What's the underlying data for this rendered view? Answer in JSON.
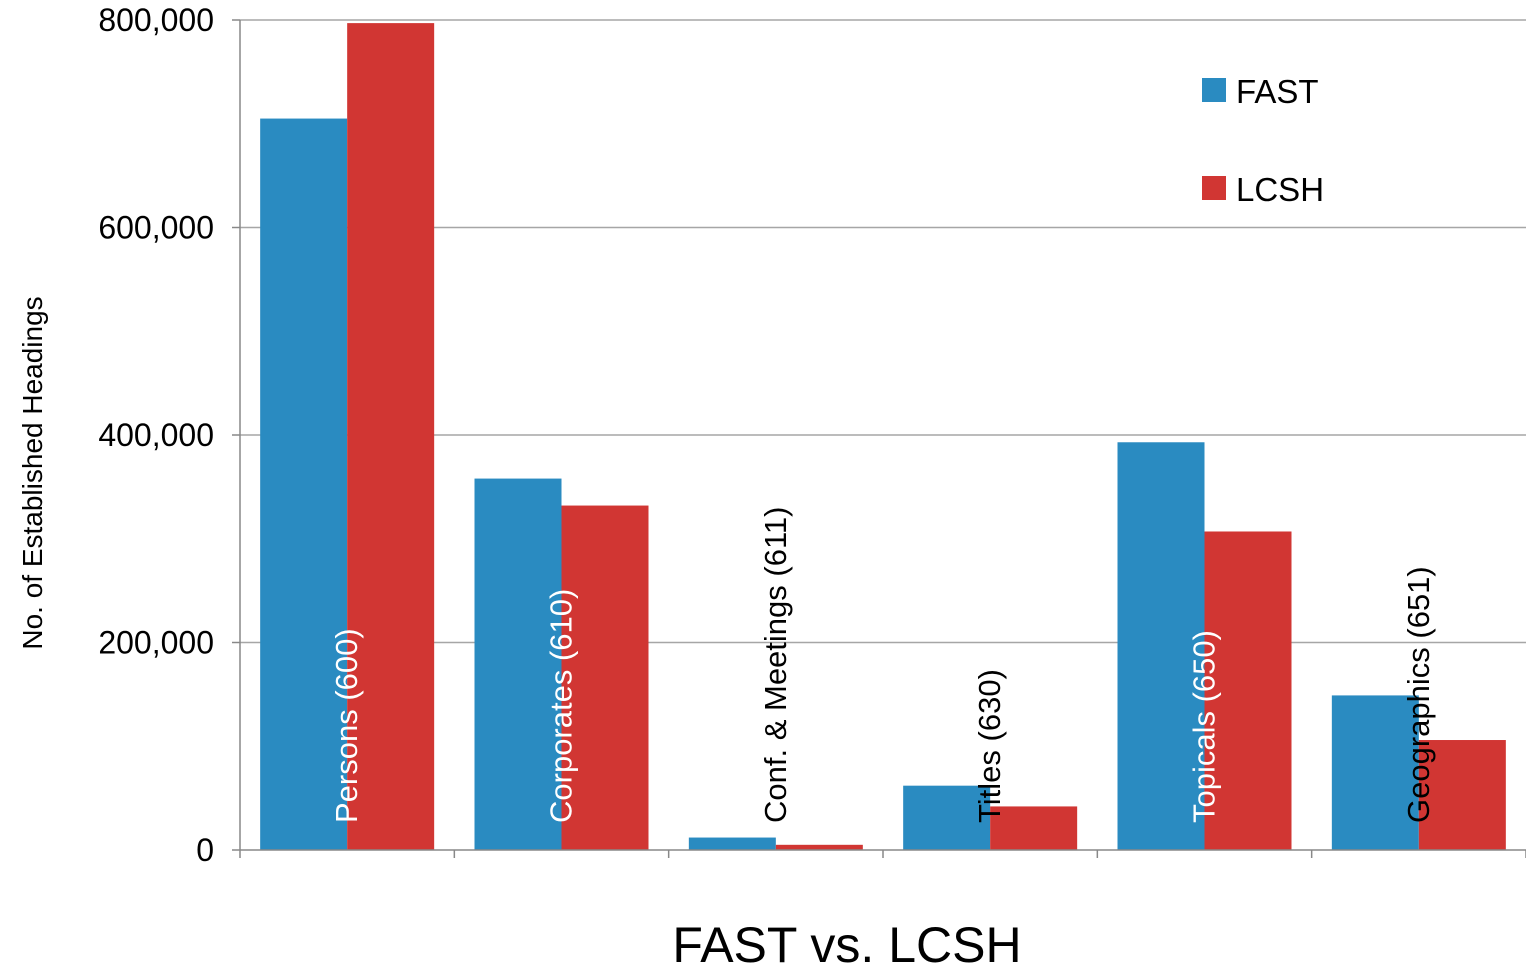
{
  "colors": {
    "fast": "#2a8bc1",
    "lcsh": "#d13633",
    "grid": "#a6a6a6",
    "axis": "#888888"
  },
  "chart_data": {
    "type": "bar",
    "title": "",
    "xlabel": "FAST vs. LCSH",
    "ylabel": "No. of Established Headings",
    "ylim": [
      0,
      800000
    ],
    "yticks": [
      "0",
      "200,000",
      "400,000",
      "600,000",
      "800,000"
    ],
    "ytick_values": [
      0,
      200000,
      400000,
      600000,
      800000
    ],
    "grid": true,
    "legend_position": "top-right",
    "categories": [
      "Persons (600)",
      "Corporates (610)",
      "Conf. & Meetings (611)",
      "Titles (630)",
      "Topicals (650)",
      "Geographics (651)"
    ],
    "series": [
      {
        "name": "FAST",
        "values": [
          705000,
          358000,
          12000,
          62000,
          393000,
          149000
        ]
      },
      {
        "name": "LCSH",
        "values": [
          797000,
          332000,
          5000,
          42000,
          307000,
          106000
        ]
      }
    ]
  }
}
